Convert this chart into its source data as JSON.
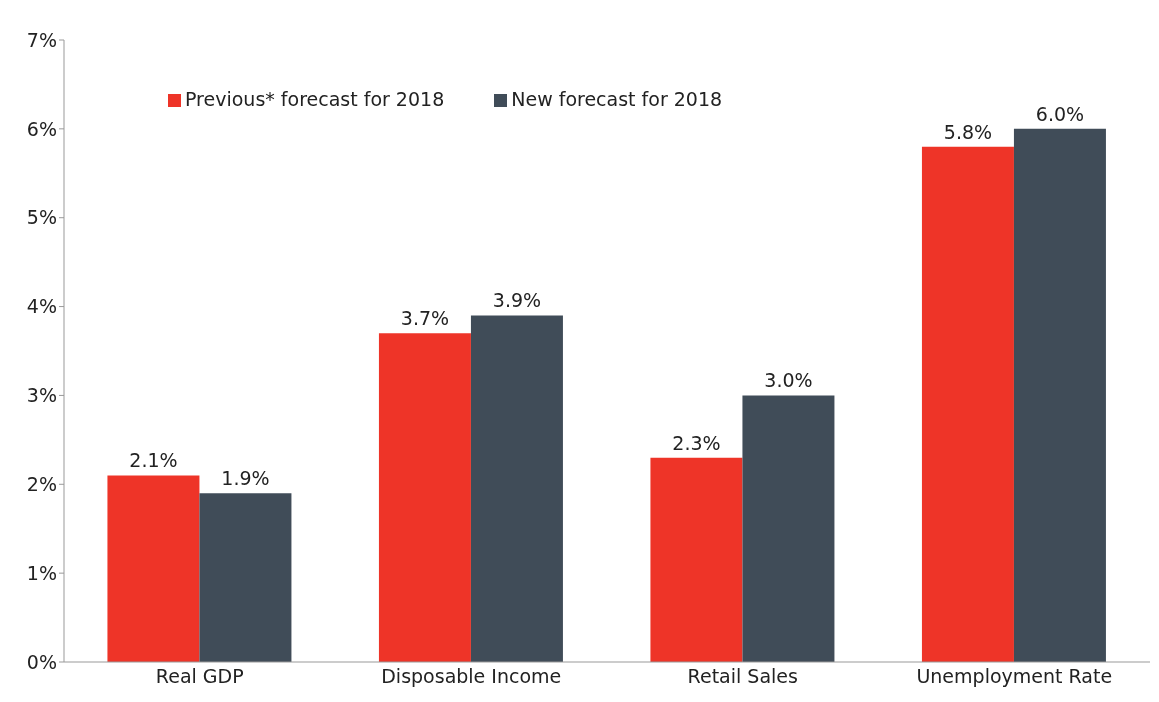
{
  "chart_data": {
    "type": "bar",
    "categories": [
      "Real GDP",
      "Disposable Income",
      "Retail Sales",
      "Unemployment Rate"
    ],
    "series": [
      {
        "name": "Previous* forecast for 2018",
        "color": "#ee3428",
        "values": [
          2.1,
          3.7,
          2.3,
          5.8
        ],
        "value_labels": [
          "2.1%",
          "3.7%",
          "2.3%",
          "5.8%"
        ]
      },
      {
        "name": "New forecast for 2018",
        "color": "#404c58",
        "values": [
          1.9,
          3.9,
          3.0,
          6.0
        ],
        "value_labels": [
          "1.9%",
          "3.9%",
          "3.0%",
          "6.0%"
        ]
      }
    ],
    "ylim": [
      0,
      7
    ],
    "yticks": [
      {
        "value": 0,
        "label": "0%"
      },
      {
        "value": 1,
        "label": "1%"
      },
      {
        "value": 2,
        "label": "2%"
      },
      {
        "value": 3,
        "label": "3%"
      },
      {
        "value": 4,
        "label": "4%"
      },
      {
        "value": 5,
        "label": "5%"
      },
      {
        "value": 6,
        "label": "6%"
      },
      {
        "value": 7,
        "label": "7%"
      }
    ],
    "grid": false,
    "legend": "top left"
  }
}
